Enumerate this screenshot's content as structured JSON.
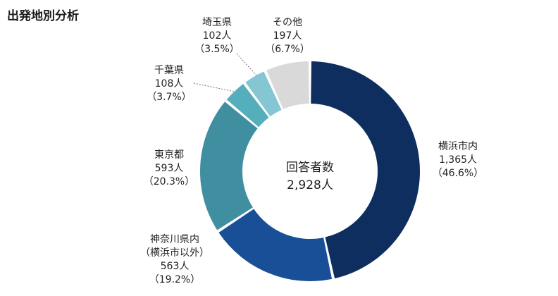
{
  "title": "出発地別分析",
  "chart_data": {
    "type": "pie",
    "donut": true,
    "title": "出発地別分析",
    "center_label": "回答者数",
    "total": "2,928人",
    "slices": [
      {
        "name": "横浜市内",
        "count": "1,365人",
        "percent": "（46.6%）",
        "value": 46.6,
        "color": "#0d2e5e"
      },
      {
        "name": "神奈川県内（横浜市以外）",
        "name_lines": [
          "神奈川県内",
          "（横浜市以外）"
        ],
        "count": "563人",
        "percent": "（19.2%）",
        "value": 19.2,
        "color": "#184f97"
      },
      {
        "name": "東京都",
        "count": "593人",
        "percent": "（20.3%）",
        "value": 20.3,
        "color": "#3f8fa0"
      },
      {
        "name": "千葉県",
        "count": "108人",
        "percent": "（3.7%）",
        "value": 3.7,
        "color": "#54aebb"
      },
      {
        "name": "埼玉県",
        "count": "102人",
        "percent": "（3.5%）",
        "value": 3.5,
        "color": "#84c6d1"
      },
      {
        "name": "その他",
        "count": "197人",
        "percent": "（6.7%）",
        "value": 6.7,
        "color": "#d9d9d9"
      }
    ]
  }
}
